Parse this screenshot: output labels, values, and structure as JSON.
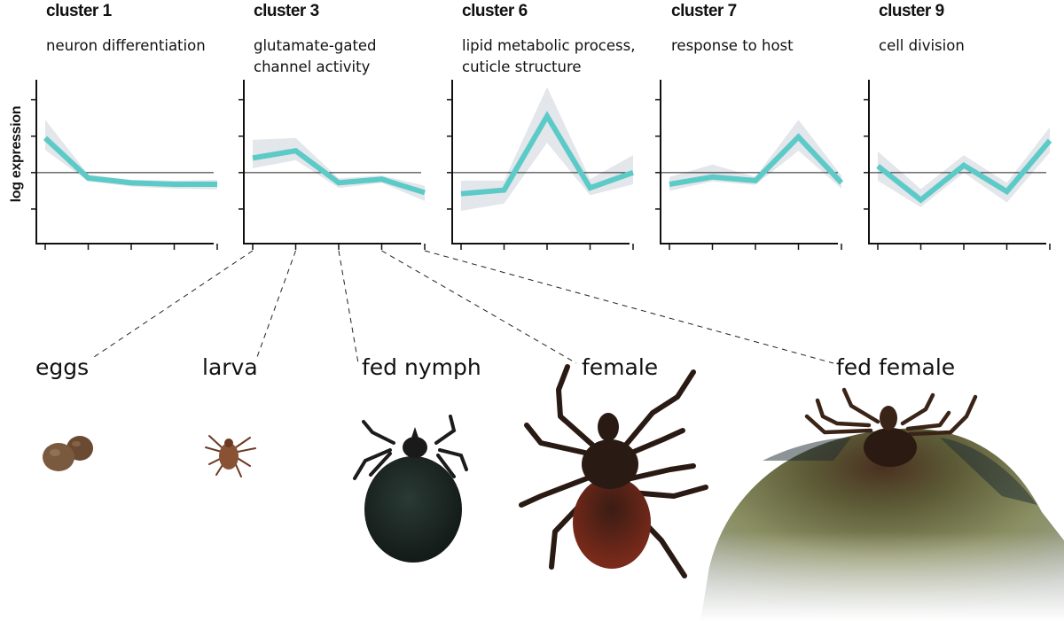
{
  "ylabel": "log expression",
  "chart_data": [
    {
      "type": "line",
      "title": "cluster 1",
      "subtitle": [
        "neuron differentiation"
      ],
      "x": [
        "eggs",
        "larva",
        "fed nymph",
        "female",
        "fed female"
      ],
      "values": [
        0.95,
        -0.15,
        -0.28,
        -0.32,
        -0.32
      ],
      "band_lower": [
        0.62,
        -0.24,
        -0.38,
        -0.44,
        -0.46
      ],
      "band_upper": [
        1.45,
        -0.05,
        -0.2,
        -0.22,
        -0.2
      ],
      "ylim": [
        -1.95,
        2.55
      ],
      "color": "#5ccac7",
      "band_color": "#e3e6ea"
    },
    {
      "type": "line",
      "title": "cluster 3",
      "subtitle": [
        "glutamate-gated",
        "channel activity"
      ],
      "x": [
        "eggs",
        "larva",
        "fed nymph",
        "female",
        "fed female"
      ],
      "values": [
        0.4,
        0.6,
        -0.28,
        -0.18,
        -0.55
      ],
      "band_lower": [
        0.12,
        0.34,
        -0.42,
        -0.28,
        -0.78
      ],
      "band_upper": [
        0.9,
        0.95,
        -0.16,
        -0.08,
        -0.36
      ],
      "ylim": [
        -1.95,
        2.55
      ],
      "color": "#5ccac7",
      "band_color": "#e3e6ea"
    },
    {
      "type": "line",
      "title": "cluster 6",
      "subtitle": [
        "lipid metabolic process,",
        "cuticle structure"
      ],
      "x": [
        "eggs",
        "larva",
        "fed nymph",
        "female",
        "fed female"
      ],
      "values": [
        -0.58,
        -0.48,
        1.55,
        -0.42,
        0.0
      ],
      "band_lower": [
        -1.05,
        -0.85,
        0.82,
        -0.62,
        -0.32
      ],
      "band_upper": [
        -0.22,
        -0.22,
        2.35,
        -0.18,
        0.48
      ],
      "ylim": [
        -1.95,
        2.55
      ],
      "color": "#5ccac7",
      "band_color": "#e3e6ea"
    },
    {
      "type": "line",
      "title": "cluster 7",
      "subtitle": [
        "response to host"
      ],
      "x": [
        "eggs",
        "larva",
        "fed nymph",
        "female",
        "fed female"
      ],
      "values": [
        -0.32,
        -0.12,
        -0.22,
        0.98,
        -0.28
      ],
      "band_lower": [
        -0.5,
        -0.24,
        -0.34,
        0.6,
        -0.44
      ],
      "band_upper": [
        -0.12,
        0.22,
        -0.12,
        1.45,
        -0.08
      ],
      "ylim": [
        -1.95,
        2.55
      ],
      "color": "#5ccac7",
      "band_color": "#e3e6ea"
    },
    {
      "type": "line",
      "title": "cluster 9",
      "subtitle": [
        "cell division"
      ],
      "x": [
        "eggs",
        "larva",
        "fed nymph",
        "female",
        "fed female"
      ],
      "values": [
        0.18,
        -0.75,
        0.2,
        -0.52,
        0.88
      ],
      "band_lower": [
        -0.22,
        -0.95,
        0.0,
        -0.82,
        0.55
      ],
      "band_upper": [
        0.58,
        -0.45,
        0.48,
        -0.28,
        1.25
      ],
      "ylim": [
        -1.95,
        2.55
      ],
      "color": "#5ccac7",
      "band_color": "#e3e6ea"
    }
  ],
  "stages": [
    "eggs",
    "larva",
    "fed nymph",
    "female",
    "fed female"
  ],
  "colors": {
    "line": "#5ccac7",
    "band": "#e3e6ea",
    "axis": "#111111",
    "egg": "#7a5a3f",
    "tick_dark": "#2a1a14",
    "tick_abdomen_female": "#6a2418",
    "tick_nymph_body": "#1f2a26",
    "fed_female_body": "#7f845a"
  },
  "icons": [
    "eggs-image",
    "larva-image",
    "fed-nymph-image",
    "female-image",
    "fed-female-image"
  ]
}
